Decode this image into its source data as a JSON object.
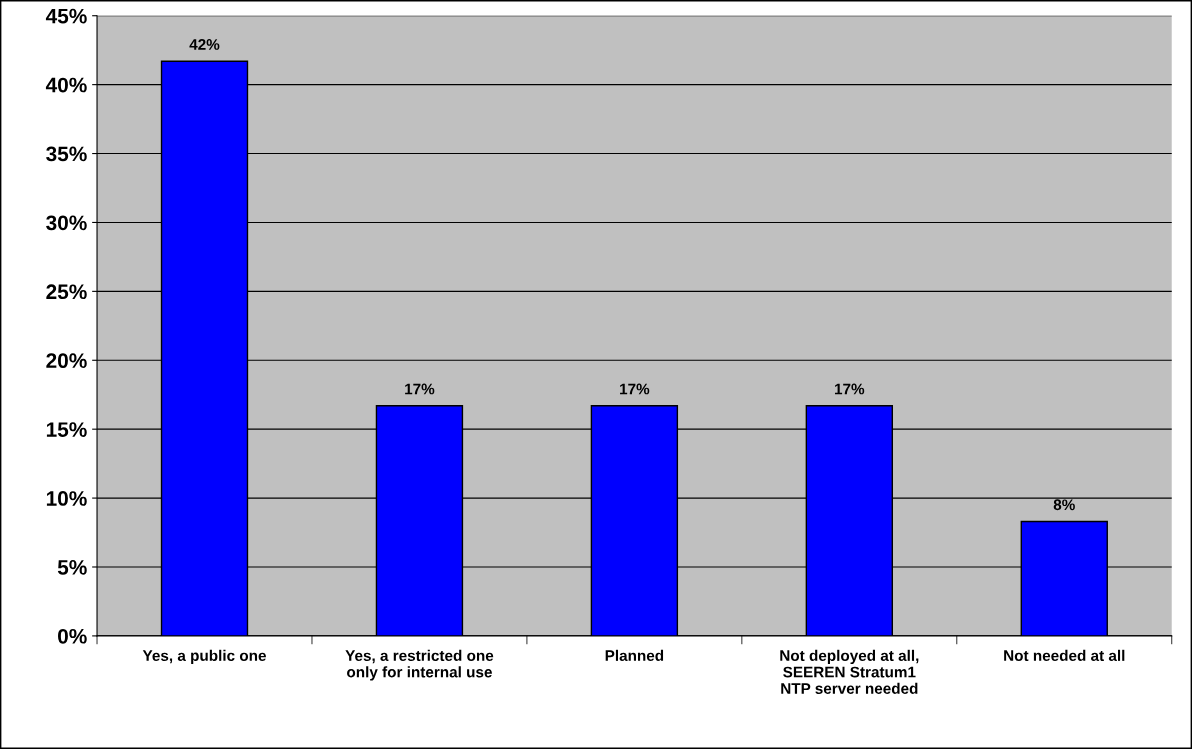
{
  "chart_data": {
    "type": "bar",
    "categories": [
      "Yes, a public one",
      "Yes, a restricted one\nonly for internal use",
      "Planned",
      "Not deployed at all,\nSEEREN Stratum1\nNTP server needed",
      "Not needed at all"
    ],
    "values": [
      41.7,
      16.7,
      16.7,
      16.7,
      8.3
    ],
    "value_labels": [
      "42%",
      "17%",
      "17%",
      "17%",
      "8%"
    ],
    "color": "#0000ff",
    "ylim": [
      0,
      45
    ],
    "yticks": [
      {
        "value": 0,
        "label": "0%"
      },
      {
        "value": 5,
        "label": "5%"
      },
      {
        "value": 10,
        "label": "10%"
      },
      {
        "value": 15,
        "label": "15%"
      },
      {
        "value": 20,
        "label": "20%"
      },
      {
        "value": 25,
        "label": "25%"
      },
      {
        "value": 30,
        "label": "30%"
      },
      {
        "value": 35,
        "label": "35%"
      },
      {
        "value": 40,
        "label": "40%"
      },
      {
        "value": 45,
        "label": "45%"
      }
    ],
    "grid": "y",
    "legend": false
  }
}
